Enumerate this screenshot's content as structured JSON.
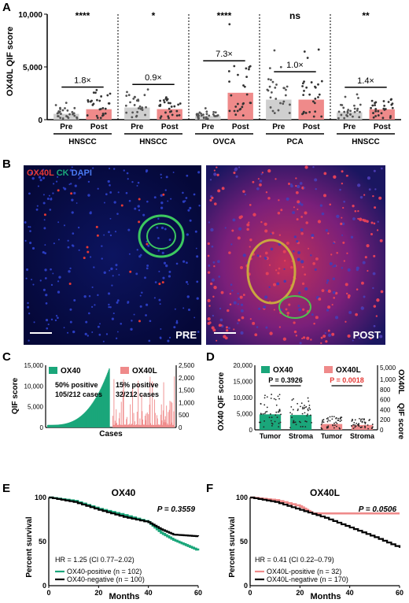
{
  "panels": {
    "A": "A",
    "B": "B",
    "C": "C",
    "D": "D",
    "E": "E",
    "F": "F"
  },
  "colors": {
    "green": "#1aa67a",
    "pink": "#ef8a8a",
    "red": "#e53935",
    "blue": "#1a2a9a",
    "black": "#000000"
  },
  "panel_b": {
    "legend": {
      "ox40l": "OX40L",
      "ck": "CK",
      "dapi": "DAPI"
    },
    "pre_label": "PRE",
    "post_label": "POST"
  },
  "chart_data": [
    {
      "id": "A",
      "type": "scatter",
      "ylabel": "OX40L QIF score",
      "ylim": [
        0,
        10000
      ],
      "yticks": [
        "0",
        "5,000",
        "10,000"
      ],
      "groups": [
        {
          "cohort": "HNSCC",
          "significance": "****",
          "fold": "1.8×",
          "pre_mean": 550,
          "post_mean": 990
        },
        {
          "cohort": "HNSCC",
          "significance": "*",
          "fold": "0.9×",
          "pre_mean": 1150,
          "post_mean": 1000
        },
        {
          "cohort": "OVCA",
          "significance": "****",
          "fold": "7.3×",
          "pre_mean": 350,
          "post_mean": 2550
        },
        {
          "cohort": "PCA",
          "significance": "ns",
          "fold": "1.0×",
          "pre_mean": 1900,
          "post_mean": 1900
        },
        {
          "cohort": "HNSCC",
          "significance": "**",
          "fold": "1.4×",
          "pre_mean": 700,
          "post_mean": 980
        }
      ],
      "x_labels": [
        "Pre",
        "Post"
      ]
    },
    {
      "id": "C",
      "type": "bar",
      "ylabel": "QIF score",
      "ylabel_right": "",
      "xlabel": "Cases",
      "ylim": [
        0,
        15000
      ],
      "yticks": [
        "0",
        "5,000",
        "10,000",
        "15,000"
      ],
      "ylim_right": [
        0,
        2500
      ],
      "yticks_right": [
        "0",
        "500",
        "1,000",
        "1,500",
        "2,000",
        "2,500"
      ],
      "series": [
        {
          "name": "OX40",
          "note": "50% positive",
          "cases": "105/212 cases"
        },
        {
          "name": "OX40L",
          "note": "15% positive",
          "cases": "32/212 cases"
        }
      ]
    },
    {
      "id": "D",
      "type": "scatter",
      "ylabel": "OX40 QIF score",
      "ylabel_right": "OX40L",
      "ylabel_right2": "QIF score",
      "ylim": [
        0,
        20000
      ],
      "yticks": [
        "0",
        "5,000",
        "10,000",
        "15,000",
        "20,000"
      ],
      "yticks_right": [
        "0",
        "200",
        "400",
        "600",
        "800",
        "1,000",
        "5,000"
      ],
      "categories": [
        "Tumor",
        "Stroma",
        "Tumor",
        "Stroma"
      ],
      "legend": [
        "OX40",
        "OX40L"
      ],
      "p_ox40": "P = 0.3926",
      "p_ox40l": "P = 0.0018",
      "means": [
        {
          "name": "OX40",
          "tumor": 4800,
          "stroma": 4600
        },
        {
          "name": "OX40L",
          "tumor": 300,
          "stroma": 250
        }
      ]
    },
    {
      "id": "E",
      "type": "line",
      "title": "OX40",
      "xlabel": "Months",
      "ylabel": "Percent survival",
      "xlim": [
        0,
        60
      ],
      "ylim": [
        0,
        100
      ],
      "xticks": [
        "0",
        "20",
        "40",
        "60"
      ],
      "yticks": [
        "0",
        "50",
        "100"
      ],
      "p_value": "P = 0.3559",
      "hr": "HR = 1.25 (CI 0.77–2.02)",
      "series": [
        {
          "name": "OX40-positive",
          "n": "(n = 102)",
          "x": [
            0,
            10,
            20,
            30,
            40,
            45,
            50,
            55,
            60
          ],
          "y": [
            100,
            96,
            87,
            80,
            72,
            60,
            52,
            46,
            40
          ]
        },
        {
          "name": "OX40-negative",
          "n": "(n = 100)",
          "x": [
            0,
            10,
            20,
            30,
            40,
            45,
            50,
            55,
            60
          ],
          "y": [
            100,
            95,
            86,
            78,
            72,
            64,
            58,
            57,
            56
          ]
        }
      ]
    },
    {
      "id": "F",
      "type": "line",
      "title": "OX40L",
      "xlabel": "Months",
      "ylabel": "Percent survival",
      "xlim": [
        0,
        60
      ],
      "ylim": [
        0,
        100
      ],
      "xticks": [
        "0",
        "20",
        "40",
        "60"
      ],
      "yticks": [
        "0",
        "50",
        "100"
      ],
      "p_value": "P = 0.0506",
      "hr": "HR = 0.41 (CI 0.22–0.79)",
      "series": [
        {
          "name": "OX40L-positive",
          "n": "(n = 32)",
          "x": [
            0,
            10,
            20,
            25,
            60
          ],
          "y": [
            100,
            97,
            90,
            82,
            82
          ]
        },
        {
          "name": "OX40L-negative",
          "n": "(n = 170)",
          "x": [
            0,
            10,
            20,
            30,
            40,
            50,
            60
          ],
          "y": [
            100,
            95,
            86,
            77,
            66,
            55,
            43
          ]
        }
      ]
    }
  ]
}
